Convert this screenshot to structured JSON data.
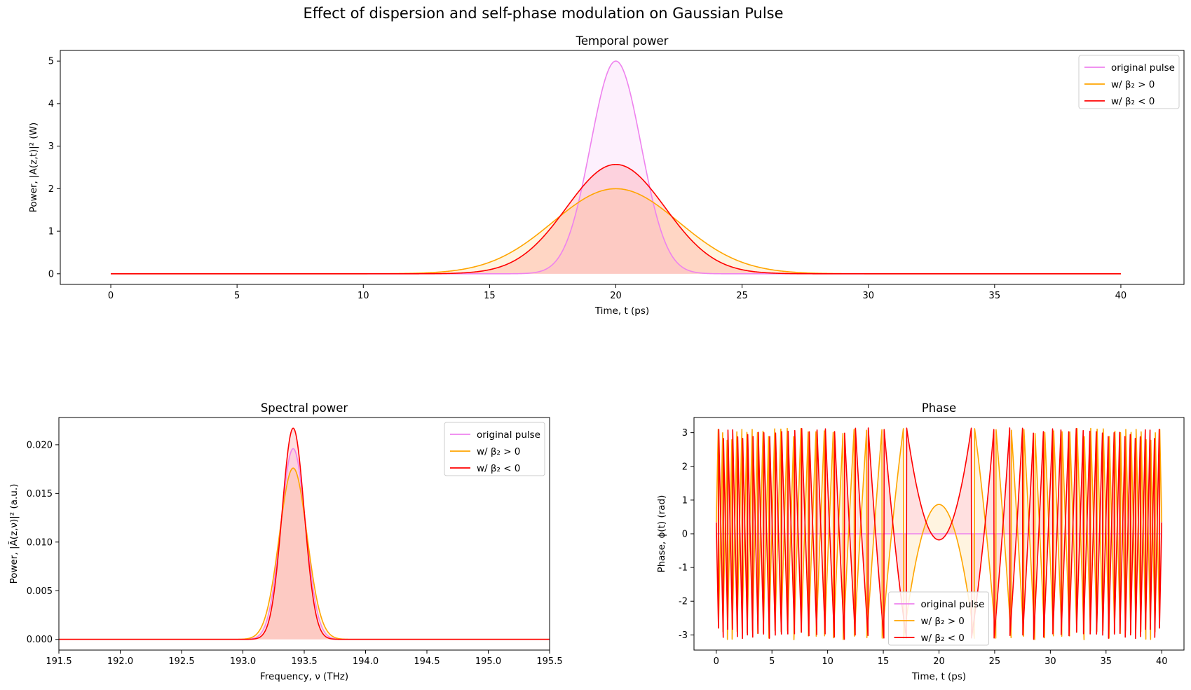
{
  "figure": {
    "suptitle": "Effect of dispersion and self-phase modulation on Gaussian Pulse"
  },
  "legend": [
    "original pulse",
    "w/ β₂ > 0",
    "w/ β₂ < 0"
  ],
  "colors": {
    "original": "#ee82ee",
    "beta_pos": "#ffa500",
    "beta_neg": "#ff0000"
  },
  "chart_data": [
    {
      "type": "line",
      "title": "Temporal power",
      "xlabel": "Time, t (ps)",
      "ylabel": "Power, |A(z,t)|² (W)",
      "xlim": [
        -2,
        42.5
      ],
      "ylim": [
        -0.25,
        5.25
      ],
      "xticks": [
        0,
        5,
        10,
        15,
        20,
        25,
        30,
        35,
        40
      ],
      "yticks": [
        0,
        1,
        2,
        3,
        4,
        5
      ],
      "grid": false,
      "legend_position": "top-right",
      "fill_under": true,
      "series": [
        {
          "name": "original pulse",
          "model": "gaussian",
          "x_range": [
            0,
            40
          ],
          "center": 20,
          "amplitude": 5.0,
          "width": 1.0
        },
        {
          "name": "w/ β₂ > 0",
          "model": "gaussian",
          "x_range": [
            0,
            40
          ],
          "center": 20,
          "amplitude": 2.0,
          "width": 2.5
        },
        {
          "name": "w/ β₂ < 0",
          "model": "gaussian",
          "x_range": [
            0,
            40
          ],
          "center": 20,
          "amplitude": 2.57,
          "width": 1.95
        }
      ]
    },
    {
      "type": "line",
      "title": "Spectral power",
      "xlabel": "Frequency, ν (THz)",
      "ylabel": "Power, |Ã(z,ν)|² (a.u.)",
      "xlim": [
        191.5,
        195.5
      ],
      "ylim": [
        -0.0011,
        0.0228
      ],
      "xticks": [
        191.5,
        192.0,
        192.5,
        193.0,
        193.5,
        194.0,
        194.5,
        195.0,
        195.5
      ],
      "yticks": [
        0.0,
        0.005,
        0.01,
        0.015,
        0.02
      ],
      "grid": false,
      "legend_position": "top-right",
      "fill_under": true,
      "series": [
        {
          "name": "original pulse",
          "model": "gaussian",
          "x_range": [
            191.5,
            195.5
          ],
          "center": 193.41,
          "amplitude": 0.0196,
          "width": 0.1
        },
        {
          "name": "w/ β₂ > 0",
          "model": "gaussian",
          "x_range": [
            191.5,
            195.5
          ],
          "center": 193.41,
          "amplitude": 0.0176,
          "width": 0.113
        },
        {
          "name": "w/ β₂ < 0",
          "model": "gaussian",
          "x_range": [
            191.5,
            195.5
          ],
          "center": 193.41,
          "amplitude": 0.0217,
          "width": 0.09
        }
      ]
    },
    {
      "type": "line",
      "title": "Phase",
      "xlabel": "Time, t (ps)",
      "ylabel": "Phase, ϕ(t) (rad)",
      "xlim": [
        -2,
        42
      ],
      "ylim": [
        -3.45,
        3.45
      ],
      "xticks": [
        0,
        5,
        10,
        15,
        20,
        25,
        30,
        35,
        40
      ],
      "yticks": [
        -3,
        -2,
        -1,
        0,
        1,
        2,
        3
      ],
      "grid": false,
      "legend_position": "bottom-center",
      "fill_under": true,
      "series": [
        {
          "name": "original pulse",
          "model": "constant",
          "x_range": [
            0,
            40
          ],
          "value": 0
        },
        {
          "name": "w/ β₂ > 0",
          "model": "wrapped-parabola",
          "x_range": [
            0,
            40
          ],
          "center": 20,
          "curvature": -0.394,
          "offset": 0.87
        },
        {
          "name": "w/ β₂ < 0",
          "model": "wrapped-parabola",
          "x_range": [
            0,
            40
          ],
          "center": 20,
          "curvature": 0.394,
          "offset": -0.18
        }
      ]
    }
  ]
}
